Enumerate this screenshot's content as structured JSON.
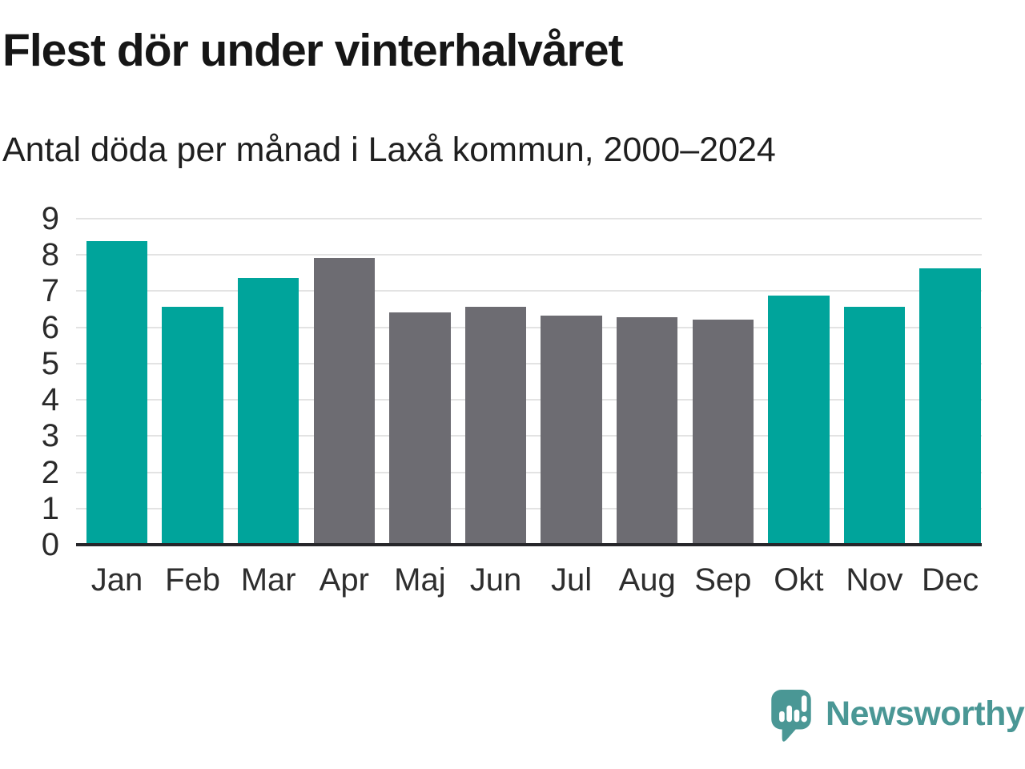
{
  "header": {
    "title": "Flest dör under vinterhalvåret",
    "subtitle": "Antal döda per månad i Laxå kommun, 2000–2024"
  },
  "chart_data": {
    "type": "bar",
    "title": "Flest dör under vinterhalvåret",
    "subtitle": "Antal döda per månad i Laxå kommun, 2000–2024",
    "categories": [
      "Jan",
      "Feb",
      "Mar",
      "Apr",
      "Maj",
      "Jun",
      "Jul",
      "Aug",
      "Sep",
      "Okt",
      "Nov",
      "Dec"
    ],
    "values": [
      8.35,
      6.55,
      7.35,
      7.9,
      6.4,
      6.55,
      6.3,
      6.25,
      6.2,
      6.85,
      6.55,
      7.6
    ],
    "bar_color_keys": [
      "teal",
      "teal",
      "teal",
      "gray",
      "gray",
      "gray",
      "gray",
      "gray",
      "gray",
      "teal",
      "teal",
      "teal"
    ],
    "colors": {
      "teal": "#00a49b",
      "gray": "#6d6c72"
    },
    "xlabel": "",
    "ylabel": "",
    "ylim": [
      0,
      9
    ],
    "yticks": [
      0,
      1,
      2,
      3,
      4,
      5,
      6,
      7,
      8,
      9
    ],
    "grid": true,
    "legend": "none"
  },
  "footer": {
    "brand": "Newsworthy"
  },
  "style": {
    "grid_color": "#e3e3e3",
    "axis_color": "#26262a",
    "text_color": "#161616",
    "tick_color": "#2a2a2a",
    "brand_color": "#4a9795"
  }
}
